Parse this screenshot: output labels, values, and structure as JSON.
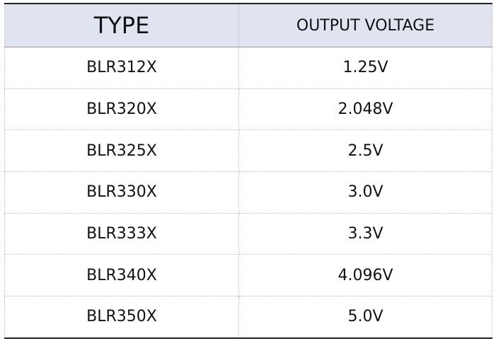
{
  "table": {
    "header": [
      "TYPE",
      "OUTPUT VOLTAGE"
    ],
    "rows": [
      [
        "BLR312X",
        "1.25V"
      ],
      [
        "BLR320X",
        "2.048V"
      ],
      [
        "BLR325X",
        "2.5V"
      ],
      [
        "BLR330X",
        "3.0V"
      ],
      [
        "BLR333X",
        "3.3V"
      ],
      [
        "BLR340X",
        "4.096V"
      ],
      [
        "BLR350X",
        "5.0V"
      ]
    ]
  }
}
